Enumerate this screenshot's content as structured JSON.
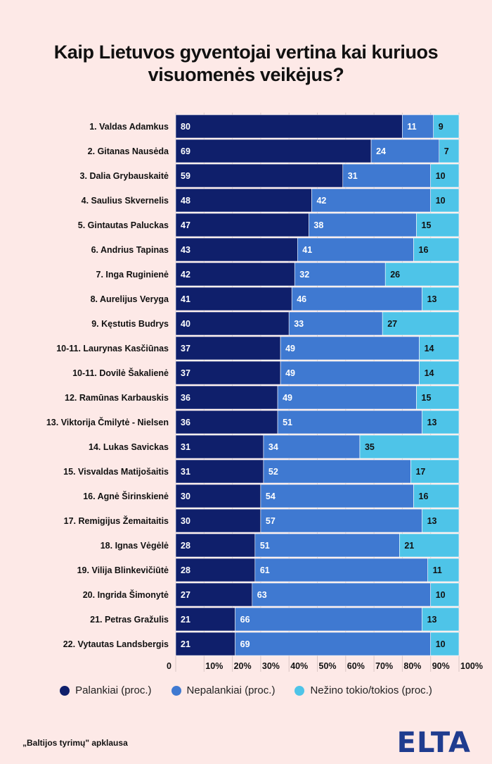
{
  "title_lines": [
    "Kaip Lietuvos gyventojai vertina kai kuriuos",
    "visuomenės veikėjus?"
  ],
  "chart_data": {
    "type": "bar",
    "orientation": "horizontal",
    "stacked": true,
    "categories": [
      "1. Valdas Adamkus",
      "2. Gitanas Nausėda",
      "3. Dalia Grybauskaitė",
      "4. Saulius Skvernelis",
      "5. Gintautas Paluckas",
      "6. Andrius Tapinas",
      "7. Inga Ruginienė",
      "8. Aurelijus Veryga",
      "9. Kęstutis Budrys",
      "10-11. Laurynas Kasčiūnas",
      "10-11. Dovilė Šakalienė",
      "12. Ramūnas Karbauskis",
      "13. Viktorija Čmilytė - Nielsen",
      "14. Lukas Savickas",
      "15. Visvaldas Matijošaitis",
      "16. Agnė Širinskienė",
      "17. Remigijus Žemaitaitis",
      "18. Ignas Vėgėlė",
      "19. Vilija Blinkevičiūtė",
      "20. Ingrida Šimonytė",
      "21. Petras Gražulis",
      "22. Vytautas Landsbergis"
    ],
    "series": [
      {
        "name": "Palankiai (proc.)",
        "color": "#0f1f6b",
        "values": [
          80,
          69,
          59,
          48,
          47,
          43,
          42,
          41,
          40,
          37,
          37,
          36,
          36,
          31,
          31,
          30,
          30,
          28,
          28,
          27,
          21,
          21
        ]
      },
      {
        "name": "Nepalankiai (proc.)",
        "color": "#3f79d1",
        "values": [
          11,
          24,
          31,
          42,
          38,
          41,
          32,
          46,
          33,
          49,
          49,
          49,
          51,
          34,
          52,
          54,
          57,
          51,
          61,
          63,
          66,
          69
        ]
      },
      {
        "name": "Nežino tokio/tokios (proc.)",
        "color": "#4ec4e8",
        "values": [
          9,
          7,
          10,
          10,
          15,
          16,
          26,
          13,
          27,
          14,
          14,
          15,
          13,
          35,
          17,
          16,
          13,
          21,
          11,
          10,
          13,
          10
        ]
      }
    ],
    "x_ticks": [
      "0",
      "10%",
      "20%",
      "30%",
      "40%",
      "50%",
      "60%",
      "70%",
      "80%",
      "90%",
      "100%"
    ],
    "xlim": [
      0,
      100
    ],
    "grid": true,
    "legend_position": "bottom"
  },
  "source": "„Baltijos tyrimų\" apklausa",
  "logo": "ELTA"
}
